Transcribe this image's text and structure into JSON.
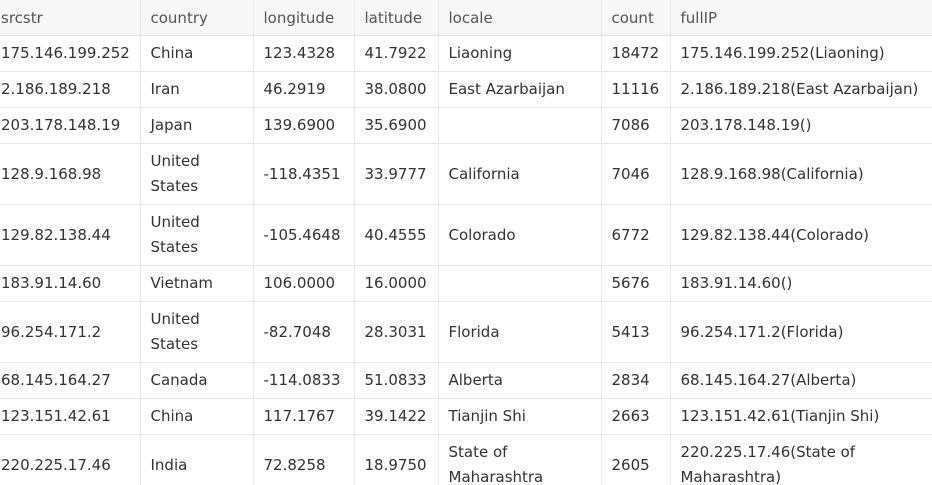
{
  "table": {
    "headers": [
      "srcstr",
      "country",
      "longitude",
      "latitude",
      "locale",
      "count",
      "fullIP"
    ],
    "rows": [
      [
        "175.146.199.252",
        "China",
        "123.4328",
        "41.7922",
        "Liaoning",
        "18472",
        "175.146.199.252(Liaoning)"
      ],
      [
        "2.186.189.218",
        "Iran",
        "46.2919",
        "38.0800",
        "East Azarbaijan",
        "11116",
        "2.186.189.218(East Azarbaijan)"
      ],
      [
        "203.178.148.19",
        "Japan",
        "139.6900",
        "35.6900",
        "",
        "7086",
        "203.178.148.19()"
      ],
      [
        "128.9.168.98",
        "United States",
        "-118.4351",
        "33.9777",
        "California",
        "7046",
        "128.9.168.98(California)"
      ],
      [
        "129.82.138.44",
        "United States",
        "-105.4648",
        "40.4555",
        "Colorado",
        "6772",
        "129.82.138.44(Colorado)"
      ],
      [
        "183.91.14.60",
        "Vietnam",
        "106.0000",
        "16.0000",
        "",
        "5676",
        "183.91.14.60()"
      ],
      [
        "96.254.171.2",
        "United States",
        "-82.7048",
        "28.3031",
        "Florida",
        "5413",
        "96.254.171.2(Florida)"
      ],
      [
        "68.145.164.27",
        "Canada",
        "-114.0833",
        "51.0833",
        "Alberta",
        "2834",
        "68.145.164.27(Alberta)"
      ],
      [
        "123.151.42.61",
        "China",
        "117.1767",
        "39.1422",
        "Tianjin Shi",
        "2663",
        "123.151.42.61(Tianjin Shi)"
      ],
      [
        "220.225.17.46",
        "India",
        "72.8258",
        "18.9750",
        "State of Maharashtra",
        "2605",
        "220.225.17.46(State of Maharashtra)"
      ]
    ]
  }
}
